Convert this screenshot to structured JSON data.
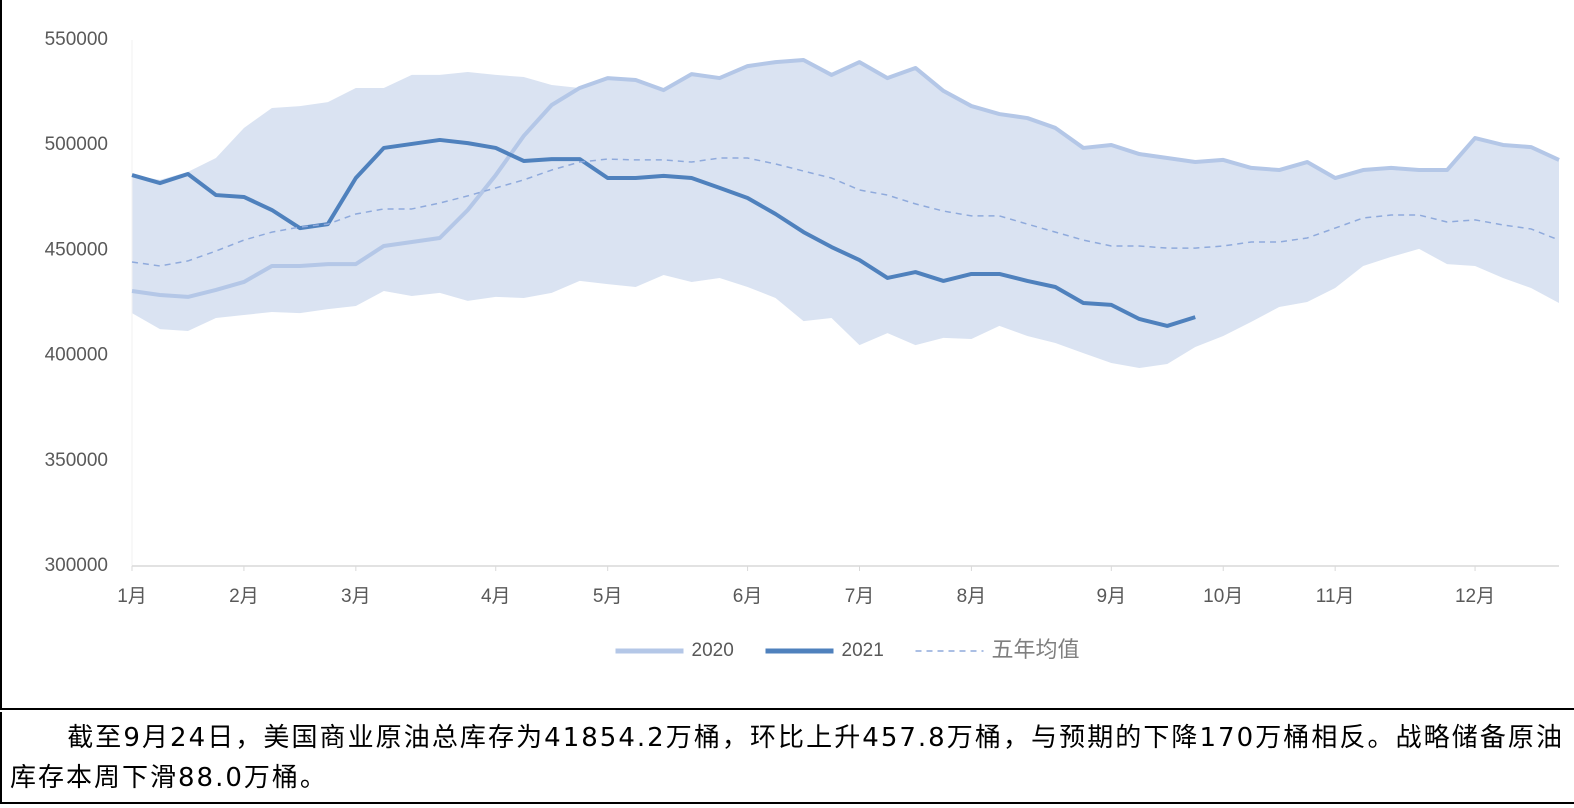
{
  "chart_data": {
    "type": "line",
    "categories": [
      "1月",
      null,
      null,
      null,
      "2月",
      null,
      null,
      null,
      "3月",
      null,
      null,
      null,
      null,
      "4月",
      null,
      null,
      null,
      "5月",
      null,
      null,
      null,
      null,
      "6月",
      null,
      null,
      null,
      "7月",
      null,
      null,
      null,
      "8月",
      null,
      null,
      null,
      null,
      "9月",
      null,
      null,
      null,
      "10月",
      null,
      null,
      null,
      "11月",
      null,
      null,
      null,
      null,
      "12月",
      null,
      null,
      null
    ],
    "band": {
      "color": "#dae3f2",
      "upper": [
        485800,
        483500,
        487300,
        493900,
        508200,
        517700,
        518600,
        520500,
        527200,
        527200,
        533400,
        533400,
        534800,
        533400,
        532400,
        528600,
        527200,
        531900,
        531000,
        526200,
        533800,
        531900,
        537600,
        539500,
        540500,
        533400,
        539500,
        531900,
        536700,
        525800,
        518600,
        514800,
        512900,
        508200,
        498700,
        500100,
        495800,
        493900,
        492000,
        493000,
        489200,
        488200,
        492000,
        484400,
        488200,
        489200,
        488200,
        488200,
        503400,
        500100,
        499100,
        493000
      ],
      "lower": [
        420200,
        412600,
        411700,
        417900,
        419300,
        420700,
        420200,
        422100,
        423600,
        430700,
        428300,
        429800,
        426000,
        427900,
        427400,
        429800,
        435500,
        434000,
        432600,
        438300,
        435000,
        436900,
        432600,
        427400,
        416400,
        417900,
        405000,
        410700,
        405000,
        408400,
        407900,
        414100,
        409300,
        406000,
        401200,
        396500,
        394100,
        396000,
        404100,
        409300,
        416000,
        423100,
        425500,
        432100,
        442600,
        446900,
        450700,
        443500,
        442600,
        436900,
        432100,
        425000
      ]
    },
    "series": [
      {
        "name": "2020",
        "color": "#b4c7e7",
        "style": "solid",
        "values": [
          430700,
          428800,
          427900,
          431200,
          435000,
          442600,
          442600,
          443500,
          443500,
          452100,
          454000,
          455900,
          469200,
          485800,
          504400,
          519100,
          527200,
          531900,
          531000,
          526200,
          533800,
          531900,
          537600,
          539500,
          540500,
          533400,
          539500,
          531900,
          536700,
          525800,
          518600,
          514800,
          512900,
          508200,
          498700,
          500100,
          495800,
          493900,
          492000,
          493000,
          489200,
          488200,
          492000,
          484400,
          488200,
          489200,
          488200,
          488200,
          503400,
          500100,
          499100,
          493000
        ]
      },
      {
        "name": "2021",
        "color": "#4f81bd",
        "style": "solid",
        "values": [
          485800,
          482000,
          486300,
          476300,
          475400,
          469200,
          460600,
          462500,
          484400,
          498700,
          500600,
          502500,
          501000,
          498700,
          492500,
          493400,
          493400,
          484400,
          484400,
          485400,
          484400,
          479700,
          474900,
          467300,
          458700,
          451600,
          445400,
          436900,
          439700,
          435500,
          438800,
          438800,
          435500,
          432600,
          425000,
          424100,
          417400,
          414100,
          418300,
          null,
          null,
          null,
          null,
          null,
          null,
          null,
          null,
          null,
          null,
          null,
          null,
          null
        ]
      },
      {
        "name": "五年均值",
        "color": "#8faadc",
        "style": "dashed",
        "values": [
          444500,
          442600,
          445000,
          449700,
          454900,
          458700,
          461100,
          462500,
          467300,
          469700,
          469700,
          472500,
          475900,
          479700,
          483500,
          488200,
          492000,
          493400,
          493000,
          493000,
          492000,
          493900,
          493900,
          491100,
          487700,
          484400,
          478700,
          476300,
          472100,
          468700,
          466400,
          466400,
          462500,
          458700,
          454900,
          452100,
          452100,
          451100,
          451100,
          452100,
          454000,
          454000,
          455900,
          460600,
          465400,
          466800,
          466800,
          463500,
          464500,
          462100,
          460200,
          454900
        ]
      }
    ],
    "ylim": [
      300000,
      550000
    ],
    "yticks": [
      300000,
      350000,
      400000,
      450000,
      500000,
      550000
    ],
    "legend": "bottom",
    "caption": "截至9月24日，美国商业原油总库存为41854.2万桶，环比上升457.8万桶，与预期的下降170万桶相反。战略储备原油库存本周下滑88.0万桶。"
  }
}
